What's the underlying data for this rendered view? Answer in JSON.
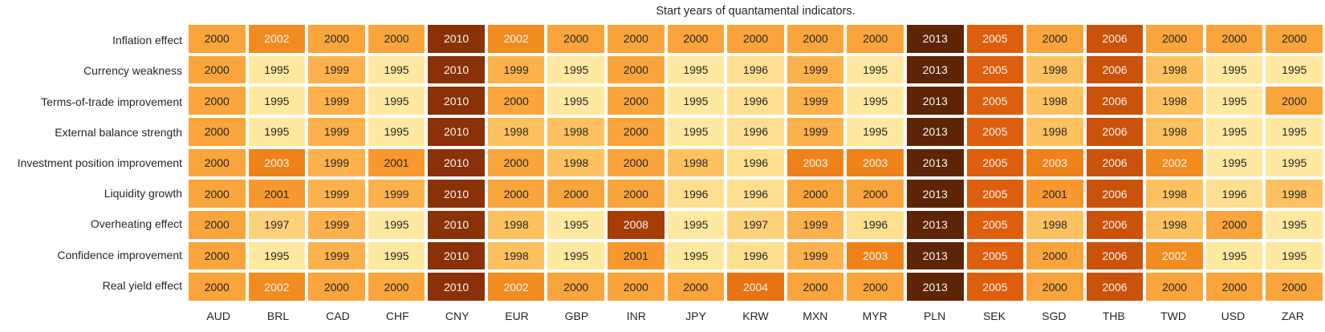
{
  "chart_data": {
    "type": "heatmap",
    "title": "Start years of quantamental indicators.",
    "x_tick_labels": [
      "AUD",
      "BRL",
      "CAD",
      "CHF",
      "CNY",
      "EUR",
      "GBP",
      "INR",
      "JPY",
      "KRW",
      "MXN",
      "MYR",
      "PLN",
      "SEK",
      "SGD",
      "THB",
      "TWD",
      "USD",
      "ZAR"
    ],
    "y_tick_labels": [
      "Inflation effect",
      "Currency weakness",
      "Terms-of-trade improvement",
      "External balance strength",
      "Investment position improvement",
      "Liquidity growth",
      "Overheating effect",
      "Confidence improvement",
      "Real yield effect"
    ],
    "values": [
      [
        2000,
        2002,
        2000,
        2000,
        2010,
        2002,
        2000,
        2000,
        2000,
        2000,
        2000,
        2000,
        2013,
        2005,
        2000,
        2006,
        2000,
        2000,
        2000
      ],
      [
        2000,
        1995,
        1999,
        1995,
        2010,
        1999,
        1995,
        2000,
        1995,
        1996,
        1999,
        1995,
        2013,
        2005,
        1998,
        2006,
        1998,
        1995,
        1995
      ],
      [
        2000,
        1995,
        1999,
        1995,
        2010,
        2000,
        1995,
        2000,
        1995,
        1996,
        1999,
        1995,
        2013,
        2005,
        1998,
        2006,
        1998,
        1995,
        2000
      ],
      [
        2000,
        1995,
        1999,
        1995,
        2010,
        1998,
        1998,
        2000,
        1995,
        1996,
        1999,
        1995,
        2013,
        2005,
        1998,
        2006,
        1998,
        1995,
        1995
      ],
      [
        2000,
        2003,
        1999,
        2001,
        2010,
        2000,
        1998,
        2000,
        1998,
        1996,
        2003,
        2003,
        2013,
        2005,
        2003,
        2006,
        2002,
        1995,
        1995
      ],
      [
        2000,
        2001,
        1999,
        1999,
        2010,
        2000,
        2000,
        2000,
        1996,
        1996,
        2000,
        2000,
        2013,
        2005,
        2001,
        2006,
        1998,
        1996,
        1998
      ],
      [
        2000,
        1997,
        1999,
        1995,
        2010,
        1998,
        1995,
        2008,
        1995,
        1997,
        1999,
        1996,
        2013,
        2005,
        1998,
        2006,
        1998,
        2000,
        1995
      ],
      [
        2000,
        1995,
        1999,
        1995,
        2010,
        1998,
        1995,
        2001,
        1995,
        1996,
        1999,
        2003,
        2013,
        2005,
        2000,
        2006,
        2002,
        1995,
        1995
      ],
      [
        2000,
        2002,
        2000,
        2000,
        2010,
        2002,
        2000,
        2000,
        2000,
        2004,
        2000,
        2000,
        2013,
        2005,
        2000,
        2006,
        2000,
        2000,
        2000
      ]
    ],
    "value_range": [
      1995,
      2013
    ],
    "annotations": "each cell annotated with its start year",
    "legend": "none",
    "palette": {
      "1995": "#FFE8A0",
      "1996": "#FEDF90",
      "1997": "#FED27B",
      "1998": "#FDC25F",
      "1999": "#FCB14C",
      "2000": "#F9A53C",
      "2001": "#F8982E",
      "2002": "#F18C20",
      "2003": "#EF8319",
      "2004": "#E87312",
      "2005": "#DD5F0D",
      "2006": "#CA520A",
      "2008": "#A63D05",
      "2010": "#8B3107",
      "2013": "#5D2506"
    },
    "annotation_text_dark": "#262626",
    "annotation_text_light": "#F5F5F5",
    "light_text_threshold": 2002,
    "background": "#FFFFFF"
  }
}
